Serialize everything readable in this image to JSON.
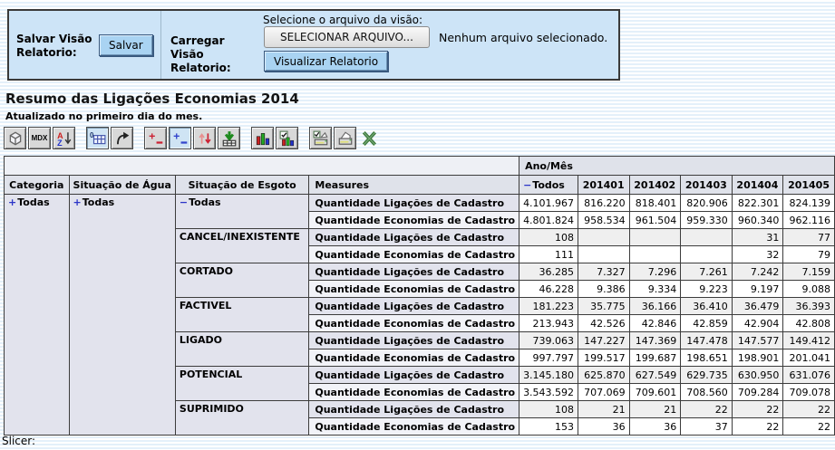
{
  "panel": {
    "save_label": "Salvar Visão Relatorio:",
    "save_button": "Salvar",
    "load_label": "Carregar Visão Relatorio:",
    "file_hint": "Selecione o arquivo da visão:",
    "file_button": "SELECIONAR ARQUIVO...",
    "file_status": "Nenhum arquivo selecionado.",
    "view_button": "Visualizar Relatorio"
  },
  "report": {
    "title": "Resumo das Ligações Economias 2014",
    "subtitle": "Atualizado no primeiro dia do mes."
  },
  "toolbar": {
    "buttons": [
      {
        "name": "cube-navigator",
        "icon": "cube"
      },
      {
        "name": "mdx-editor",
        "icon": "mdx",
        "label": "MDX"
      },
      {
        "name": "sort-a-z",
        "icon": "sort-az"
      },
      {
        "name": "show-parent-members",
        "icon": "parent-grid",
        "pressed": true,
        "gap": true
      },
      {
        "name": "swap-axes",
        "icon": "swap"
      },
      {
        "name": "drill-member",
        "icon": "drill-red",
        "gap": true
      },
      {
        "name": "drill-position",
        "icon": "drill-blue",
        "pressed": true
      },
      {
        "name": "drill-replace",
        "icon": "drill-arrows"
      },
      {
        "name": "drill-through",
        "icon": "drill-through"
      },
      {
        "name": "show-chart",
        "icon": "chart",
        "gap": true
      },
      {
        "name": "chart-config",
        "icon": "chart-config"
      },
      {
        "name": "print-config",
        "icon": "print-config",
        "gap": true
      },
      {
        "name": "print-pdf",
        "icon": "printer"
      },
      {
        "name": "export-excel",
        "icon": "excel",
        "flat": true
      }
    ]
  },
  "colors": {
    "panel_bg": "#cde4f7",
    "button_blue": "#a9d3f2",
    "header_bg": "#dfe2ea",
    "rowhead_dark": "#e2e3ed",
    "rowhead_light": "#f2f3f8",
    "row_gray": "#efefef",
    "expand_blue": "#2b35c8"
  },
  "table": {
    "axis_label": "Ano/Mês",
    "row_columns": [
      "Categoria",
      "Situação de Água",
      "Situação de Esgoto",
      "Measures"
    ],
    "value_headers": [
      {
        "expand": "-",
        "label": "Todos"
      },
      {
        "label": "201401"
      },
      {
        "label": "201402"
      },
      {
        "label": "201403"
      },
      {
        "label": "201404"
      },
      {
        "label": "201405"
      }
    ],
    "categoria": {
      "expand": "+",
      "label": "Todas"
    },
    "agua": {
      "expand": "+",
      "label": "Todas"
    },
    "rows": [
      {
        "esgoto": {
          "expand": "-",
          "label": "Todas",
          "indent": false
        },
        "measure": "Quantidade Ligações de Cadastro",
        "values": [
          "4.101.967",
          "816.220",
          "818.401",
          "820.906",
          "822.301",
          "824.139"
        ]
      },
      {
        "measure": "Quantidade Economias de Cadastro",
        "values": [
          "4.801.824",
          "958.534",
          "961.504",
          "959.330",
          "960.340",
          "962.116"
        ]
      },
      {
        "esgoto": {
          "label": "CANCEL/INEXISTENTE",
          "indent": true
        },
        "measure": "Quantidade Ligações de Cadastro",
        "values": [
          "108",
          "",
          "",
          "",
          "31",
          "77"
        ]
      },
      {
        "measure": "Quantidade Economias de Cadastro",
        "values": [
          "111",
          "",
          "",
          "",
          "32",
          "79"
        ]
      },
      {
        "esgoto": {
          "label": "CORTADO",
          "indent": true
        },
        "measure": "Quantidade Ligações de Cadastro",
        "values": [
          "36.285",
          "7.327",
          "7.296",
          "7.261",
          "7.242",
          "7.159"
        ]
      },
      {
        "measure": "Quantidade Economias de Cadastro",
        "values": [
          "46.228",
          "9.386",
          "9.334",
          "9.223",
          "9.197",
          "9.088"
        ]
      },
      {
        "esgoto": {
          "label": "FACTIVEL",
          "indent": true
        },
        "measure": "Quantidade Ligações de Cadastro",
        "values": [
          "181.223",
          "35.775",
          "36.166",
          "36.410",
          "36.479",
          "36.393"
        ]
      },
      {
        "measure": "Quantidade Economias de Cadastro",
        "values": [
          "213.943",
          "42.526",
          "42.846",
          "42.859",
          "42.904",
          "42.808"
        ]
      },
      {
        "esgoto": {
          "label": "LIGADO",
          "indent": true
        },
        "measure": "Quantidade Ligações de Cadastro",
        "values": [
          "739.063",
          "147.227",
          "147.369",
          "147.478",
          "147.577",
          "149.412"
        ]
      },
      {
        "measure": "Quantidade Economias de Cadastro",
        "values": [
          "997.797",
          "199.517",
          "199.687",
          "198.651",
          "198.901",
          "201.041"
        ]
      },
      {
        "esgoto": {
          "label": "POTENCIAL",
          "indent": true
        },
        "measure": "Quantidade Ligações de Cadastro",
        "values": [
          "3.145.180",
          "625.870",
          "627.549",
          "629.735",
          "630.950",
          "631.076"
        ]
      },
      {
        "measure": "Quantidade Economias de Cadastro",
        "values": [
          "3.543.592",
          "707.069",
          "709.601",
          "708.560",
          "709.284",
          "709.078"
        ]
      },
      {
        "esgoto": {
          "label": "SUPRIMIDO",
          "indent": true
        },
        "measure": "Quantidade Ligações de Cadastro",
        "values": [
          "108",
          "21",
          "21",
          "22",
          "22",
          "22"
        ]
      },
      {
        "measure": "Quantidade Economias de Cadastro",
        "values": [
          "153",
          "36",
          "36",
          "37",
          "22",
          "22"
        ]
      }
    ]
  },
  "slicer_label": "Slicer:"
}
